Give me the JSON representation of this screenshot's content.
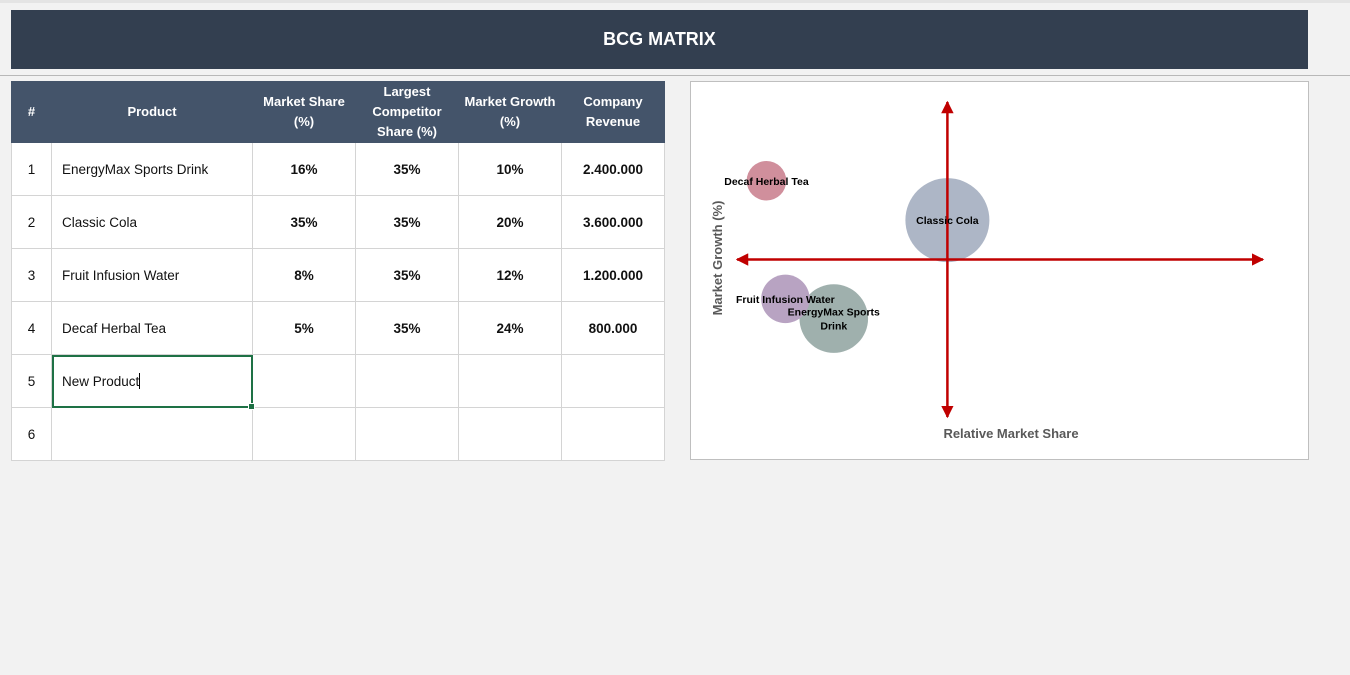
{
  "header": {
    "title": "BCG MATRIX"
  },
  "table": {
    "columns": [
      "#",
      "Product",
      "Market Share (%)",
      "Largest Competitor Share (%)",
      "Market Growth (%)",
      "Company Revenue"
    ],
    "rows": [
      {
        "num": "1",
        "product": "EnergyMax Sports Drink",
        "share": "16%",
        "competitor": "35%",
        "growth": "10%",
        "revenue": "2.400.000"
      },
      {
        "num": "2",
        "product": "Classic Cola",
        "share": "35%",
        "competitor": "35%",
        "growth": "20%",
        "revenue": "3.600.000"
      },
      {
        "num": "3",
        "product": "Fruit Infusion Water",
        "share": "8%",
        "competitor": "35%",
        "growth": "12%",
        "revenue": "1.200.000"
      },
      {
        "num": "4",
        "product": "Decaf Herbal Tea",
        "share": "5%",
        "competitor": "35%",
        "growth": "24%",
        "revenue": "800.000"
      },
      {
        "num": "5",
        "product": "New Product",
        "share": "",
        "competitor": "",
        "growth": "",
        "revenue": ""
      },
      {
        "num": "6",
        "product": "",
        "share": "",
        "competitor": "",
        "growth": "",
        "revenue": ""
      }
    ],
    "editing_row": 4
  },
  "chart_data": {
    "type": "bubble",
    "xlabel": "Relative Market Share",
    "ylabel": "Market Growth (%)",
    "xlim": [
      0,
      2.5
    ],
    "ylim": [
      0,
      0.32
    ],
    "x_cross": 1.0,
    "y_cross": 0.16,
    "axis_color": "#c00000",
    "grid": false,
    "legend": "none",
    "series": [
      {
        "label": "EnergyMax Sports Drink",
        "x": 0.46,
        "y": 0.1,
        "size": 2400000,
        "color": "#9fb0ad"
      },
      {
        "label": "Classic Cola",
        "x": 1.0,
        "y": 0.2,
        "size": 3600000,
        "color": "#adb6c6"
      },
      {
        "label": "Fruit Infusion Water",
        "x": 0.23,
        "y": 0.12,
        "size": 1200000,
        "color": "#b8a3c2"
      },
      {
        "label": "Decaf Herbal Tea",
        "x": 0.14,
        "y": 0.24,
        "size": 800000,
        "color": "#d08f9c"
      }
    ]
  }
}
